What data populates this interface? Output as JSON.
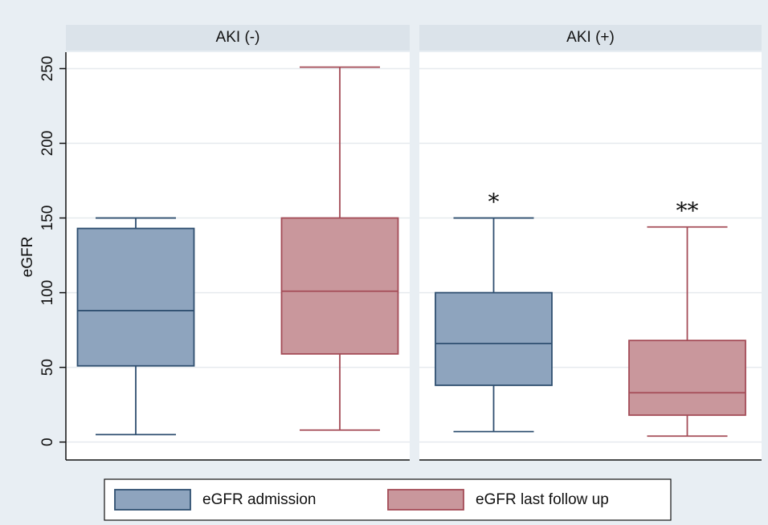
{
  "chart_data": {
    "type": "box",
    "ylabel": "eGFR",
    "ylim": [
      -12,
      261
    ],
    "yticks": [
      0,
      50,
      100,
      150,
      200,
      250
    ],
    "grid": true,
    "legend": "bottom",
    "panels": [
      "AKI (-)",
      "AKI (+)"
    ],
    "series": [
      {
        "name": "eGFR admission",
        "color": "#8ea4be",
        "edge": "#2f4f70",
        "boxes": [
          {
            "whislo": 5,
            "q1": 51,
            "med": 88,
            "q3": 143,
            "whishi": 150
          },
          {
            "whislo": 7,
            "q1": 38,
            "med": 66,
            "q3": 100,
            "whishi": 150
          }
        ],
        "marks": [
          null,
          "*"
        ]
      },
      {
        "name": "eGFR last follow up",
        "color": "#c9979c",
        "edge": "#a44c57",
        "boxes": [
          {
            "whislo": 8,
            "q1": 59,
            "med": 101,
            "q3": 150,
            "whishi": 251
          },
          {
            "whislo": 4,
            "q1": 18,
            "med": 33,
            "q3": 68,
            "whishi": 144
          }
        ],
        "marks": [
          null,
          "**"
        ]
      }
    ]
  }
}
